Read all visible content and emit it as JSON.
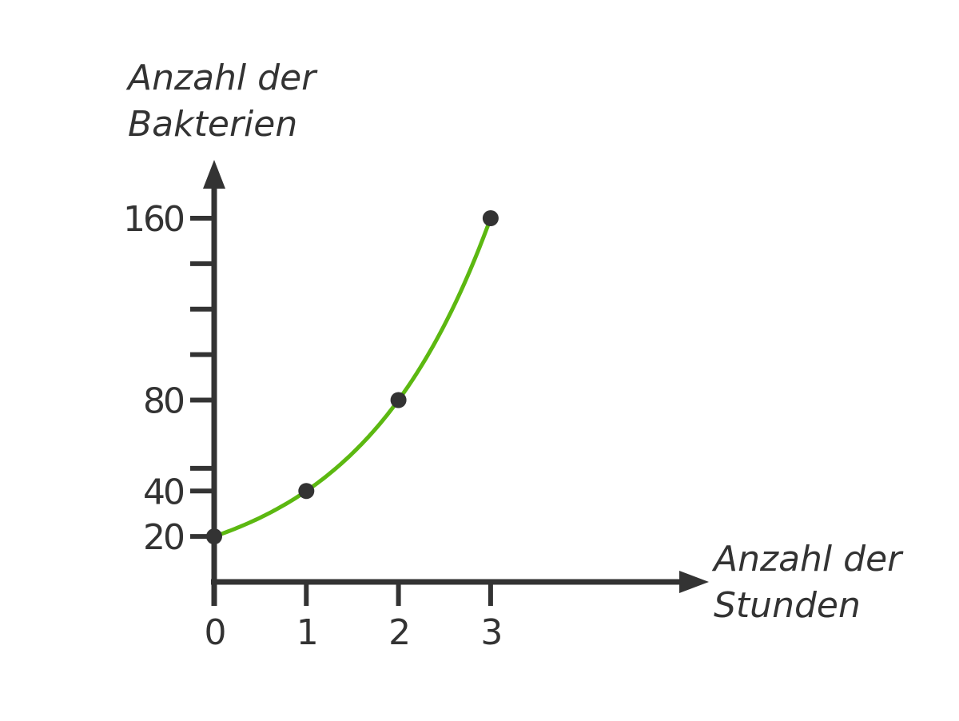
{
  "chart_data": {
    "type": "line",
    "title": "",
    "ylabel": [
      "Anzahl der",
      "Bakterien"
    ],
    "xlabel": [
      "Anzahl der",
      "Stunden"
    ],
    "x": [
      0,
      1,
      2,
      3
    ],
    "series": [
      {
        "values": [
          20,
          40,
          80,
          160
        ]
      }
    ],
    "x_ticks": [
      0,
      1,
      2,
      3
    ],
    "x_tick_labels": [
      "0",
      "1",
      "2",
      "3"
    ],
    "y_ticks_all": [
      20,
      40,
      50,
      80,
      100,
      120,
      140,
      160
    ],
    "y_ticks_labeled": [
      20,
      40,
      80,
      160
    ],
    "y_tick_labels": [
      "20",
      "40",
      "80",
      "160"
    ],
    "xlim": [
      0,
      5.35
    ],
    "ylim": [
      0,
      175
    ],
    "grid": false,
    "legend": "none",
    "colors": {
      "curve": "#5cb811",
      "axis": "#333333",
      "point": "#333333"
    }
  }
}
